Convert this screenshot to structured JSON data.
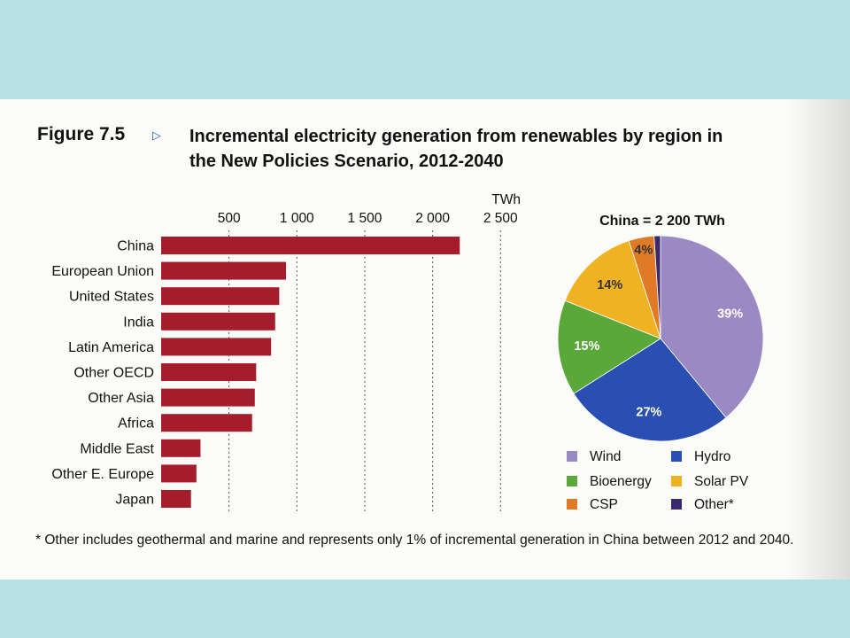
{
  "figure": {
    "label": "Figure 7.5",
    "title_line1": "Incremental electricity generation from renewables by region in",
    "title_line2": "the New Policies Scenario, 2012-2040",
    "marker_icon": "triangle-right-icon"
  },
  "footnote": "* Other includes geothermal and marine and represents only 1% of incremental generation in China between 2012 and 2040.",
  "colors": {
    "bar": "#a51d2d",
    "wind": "#9b89c4",
    "hydro": "#2a4fb3",
    "bioenergy": "#5aa83a",
    "solar": "#efb222",
    "csp": "#e07a27",
    "other": "#3b2a6b",
    "accent_band": "#b7e0e4"
  },
  "chart_data": [
    {
      "type": "bar",
      "orientation": "horizontal",
      "unit": "TWh",
      "ticks": [
        "500",
        "1 000",
        "1 500",
        "2 000",
        "2 500"
      ],
      "xlim": [
        0,
        2700
      ],
      "grid": true,
      "categories": [
        "China",
        "European Union",
        "United States",
        "India",
        "Latin America",
        "Other OECD",
        "Other Asia",
        "Africa",
        "Middle East",
        "Other E. Europe",
        "Japan"
      ],
      "values": [
        2200,
        920,
        870,
        840,
        810,
        700,
        690,
        670,
        290,
        260,
        220
      ]
    },
    {
      "type": "pie",
      "title": "China = 2 200 TWh",
      "slices": [
        {
          "label": "Wind",
          "value": 39,
          "data_label": "39%",
          "color_key": "wind"
        },
        {
          "label": "Hydro",
          "value": 27,
          "data_label": "27%",
          "color_key": "hydro"
        },
        {
          "label": "Bioenergy",
          "value": 15,
          "data_label": "15%",
          "color_key": "bioenergy"
        },
        {
          "label": "Solar PV",
          "value": 14,
          "data_label": "14%",
          "color_key": "solar"
        },
        {
          "label": "CSP",
          "value": 4,
          "data_label": "4%",
          "color_key": "csp"
        },
        {
          "label": "Other*",
          "value": 1,
          "data_label": "",
          "color_key": "other"
        }
      ],
      "legend": {
        "placement": "bottom",
        "items": [
          {
            "label": "Wind",
            "color_key": "wind"
          },
          {
            "label": "Hydro",
            "color_key": "hydro"
          },
          {
            "label": "Bioenergy",
            "color_key": "bioenergy"
          },
          {
            "label": "Solar PV",
            "color_key": "solar"
          },
          {
            "label": "CSP",
            "color_key": "csp"
          },
          {
            "label": "Other*",
            "color_key": "other"
          }
        ]
      }
    }
  ]
}
